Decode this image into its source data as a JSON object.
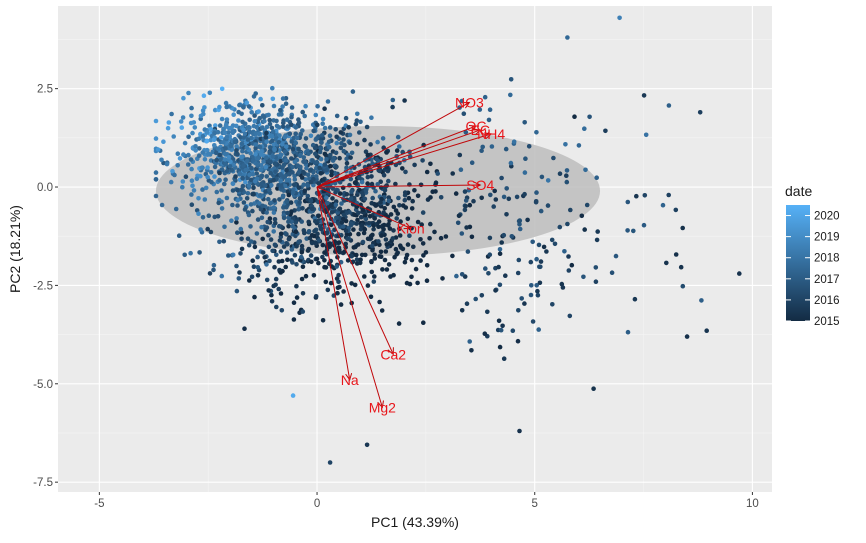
{
  "chart_data": {
    "type": "scatter",
    "title": "",
    "xlabel": "PC1 (43.39%)",
    "ylabel": "PC2 (18.21%)",
    "xlim": [
      -5.95,
      10.45
    ],
    "ylim": [
      -7.75,
      4.6
    ],
    "x_ticks": [
      {
        "value": -5,
        "label": "-5"
      },
      {
        "value": 0,
        "label": "0"
      },
      {
        "value": 5,
        "label": "5"
      },
      {
        "value": 10,
        "label": "10"
      }
    ],
    "y_ticks": [
      {
        "value": 2.5,
        "label": "2.5"
      },
      {
        "value": 0,
        "label": "0.0"
      },
      {
        "value": -2.5,
        "label": "-2.5"
      },
      {
        "value": -5,
        "label": "-5.0"
      },
      {
        "value": -7.5,
        "label": "-7.5"
      }
    ],
    "grid": true,
    "panel_background": "#ebebeb",
    "ellipse": {
      "center": [
        1.4,
        -0.1
      ],
      "semi_axes": [
        5.1,
        1.65
      ],
      "fill": "#bdbdbd"
    },
    "color_scale": {
      "title": "date",
      "low": "#132B43",
      "high": "#56B1F7",
      "range": [
        2015,
        2020.5
      ],
      "labels": [
        {
          "value": 2020,
          "label": "2020"
        },
        {
          "value": 2019,
          "label": "2019"
        },
        {
          "value": 2018,
          "label": "2018"
        },
        {
          "value": 2017,
          "label": "2017"
        },
        {
          "value": 2016,
          "label": "2016"
        },
        {
          "value": 2015,
          "label": "2015"
        }
      ],
      "legend_position": "right"
    },
    "loadings": [
      {
        "name": "NO3",
        "x": 3.5,
        "y": 2.15
      },
      {
        "name": "OC",
        "x": 3.65,
        "y": 1.55
      },
      {
        "name": "EC",
        "x": 3.75,
        "y": 1.45
      },
      {
        "name": "NH4",
        "x": 4.0,
        "y": 1.35
      },
      {
        "name": "SO4",
        "x": 3.75,
        "y": 0.05
      },
      {
        "name": "Kion",
        "x": 2.15,
        "y": -1.05
      },
      {
        "name": "Ca2",
        "x": 1.75,
        "y": -4.25
      },
      {
        "name": "Na",
        "x": 0.75,
        "y": -4.9
      },
      {
        "name": "Mg2",
        "x": 1.5,
        "y": -5.6
      }
    ],
    "sample_points": [
      {
        "x": 6.95,
        "y": 4.3,
        "date": 2018.5
      },
      {
        "x": 5.75,
        "y": 3.8,
        "date": 2017.5
      },
      {
        "x": 9.7,
        "y": -2.2,
        "date": 2015.3
      },
      {
        "x": 8.95,
        "y": -3.65,
        "date": 2015.4
      },
      {
        "x": 8.5,
        "y": -3.8,
        "date": 2015.2
      },
      {
        "x": 7.3,
        "y": -2.85,
        "date": 2015.5
      },
      {
        "x": 8.8,
        "y": 1.9,
        "date": 2015.8
      },
      {
        "x": -3.65,
        "y": 0.95,
        "date": 2019.5
      },
      {
        "x": -0.55,
        "y": -5.3,
        "date": 2020.2
      },
      {
        "x": 0.3,
        "y": -7.0,
        "date": 2016.0
      },
      {
        "x": 4.65,
        "y": -6.2,
        "date": 2015.3
      },
      {
        "x": 1.15,
        "y": -6.55,
        "date": 2015.5
      }
    ],
    "cloud": {
      "count": 1900,
      "extra_count": 180,
      "seed": 7,
      "center": [
        -0.3,
        0.2
      ],
      "spread": [
        1.6,
        1.2
      ],
      "tilt": -0.35
    }
  }
}
